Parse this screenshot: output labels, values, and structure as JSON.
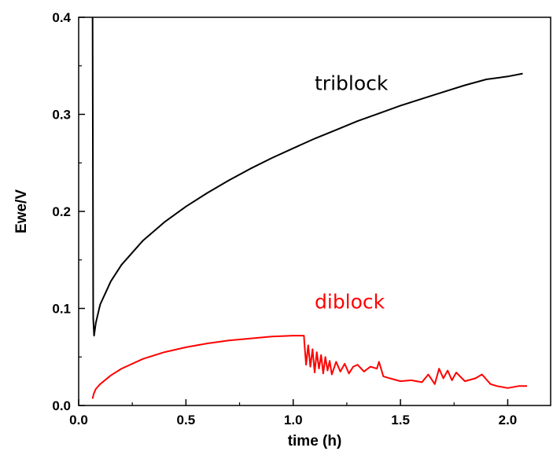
{
  "chart_data": {
    "type": "line",
    "title": "",
    "xlabel": "time (h)",
    "ylabel": "Ewe/V",
    "xlim": [
      0.0,
      2.2
    ],
    "ylim": [
      0.0,
      0.4
    ],
    "x_ticks": [
      "0.0",
      "0.5",
      "1.0",
      "1.5",
      "2.0"
    ],
    "x_tick_values": [
      0.0,
      0.5,
      1.0,
      1.5,
      2.0
    ],
    "y_ticks": [
      "0.0",
      "0.1",
      "0.2",
      "0.3",
      "0.4"
    ],
    "y_tick_values": [
      0.0,
      0.1,
      0.2,
      0.3,
      0.4
    ],
    "grid": false,
    "series": [
      {
        "name": "triblock",
        "color": "#000000",
        "x": [
          0.065,
          0.068,
          0.072,
          0.08,
          0.1,
          0.15,
          0.2,
          0.3,
          0.4,
          0.5,
          0.6,
          0.7,
          0.8,
          0.9,
          1.0,
          1.1,
          1.2,
          1.3,
          1.4,
          1.5,
          1.6,
          1.7,
          1.8,
          1.9,
          2.0,
          2.07
        ],
        "y": [
          0.4,
          0.09,
          0.072,
          0.085,
          0.104,
          0.128,
          0.145,
          0.17,
          0.189,
          0.205,
          0.219,
          0.232,
          0.244,
          0.255,
          0.265,
          0.275,
          0.284,
          0.293,
          0.301,
          0.309,
          0.316,
          0.323,
          0.33,
          0.336,
          0.339,
          0.342
        ]
      },
      {
        "name": "diblock",
        "color": "#ff0000",
        "x": [
          0.065,
          0.07,
          0.08,
          0.1,
          0.15,
          0.2,
          0.3,
          0.4,
          0.5,
          0.6,
          0.7,
          0.8,
          0.9,
          1.0,
          1.05,
          1.052,
          1.06,
          1.07,
          1.08,
          1.09,
          1.1,
          1.11,
          1.12,
          1.13,
          1.14,
          1.15,
          1.16,
          1.17,
          1.18,
          1.2,
          1.22,
          1.24,
          1.26,
          1.28,
          1.3,
          1.33,
          1.36,
          1.39,
          1.4,
          1.42,
          1.45,
          1.5,
          1.55,
          1.6,
          1.63,
          1.66,
          1.68,
          1.7,
          1.72,
          1.74,
          1.76,
          1.8,
          1.85,
          1.88,
          1.92,
          1.95,
          2.0,
          2.05,
          2.09
        ],
        "y": [
          0.007,
          0.012,
          0.017,
          0.022,
          0.031,
          0.038,
          0.048,
          0.055,
          0.06,
          0.064,
          0.067,
          0.069,
          0.071,
          0.072,
          0.072,
          0.065,
          0.042,
          0.062,
          0.04,
          0.058,
          0.034,
          0.055,
          0.038,
          0.052,
          0.033,
          0.05,
          0.036,
          0.046,
          0.032,
          0.045,
          0.035,
          0.043,
          0.033,
          0.04,
          0.042,
          0.035,
          0.04,
          0.038,
          0.045,
          0.03,
          0.028,
          0.025,
          0.026,
          0.024,
          0.032,
          0.022,
          0.038,
          0.028,
          0.036,
          0.026,
          0.034,
          0.025,
          0.028,
          0.032,
          0.022,
          0.02,
          0.018,
          0.02,
          0.02
        ]
      }
    ],
    "annotations": [
      {
        "text": "triblock",
        "color": "#000000",
        "x": 1.1,
        "y": 0.325
      },
      {
        "text": "diblock",
        "color": "#ff0000",
        "x": 1.1,
        "y": 0.1
      }
    ]
  }
}
